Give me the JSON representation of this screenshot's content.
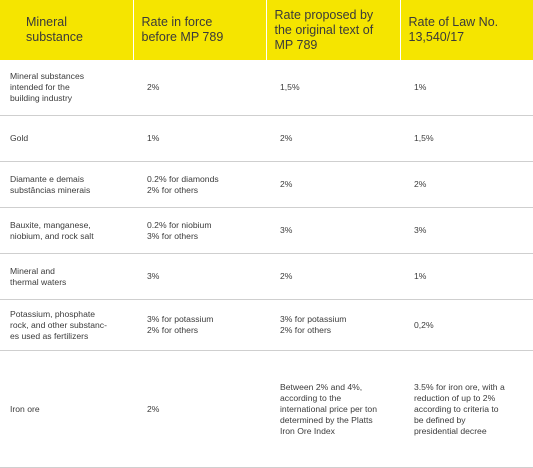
{
  "header": {
    "col1": "Mineral\nsubstance",
    "col2": "Rate in force\nbefore MP 789",
    "col3": "Rate proposed by\nthe original text of\nMP 789",
    "col4": "Rate of Law No.\n13,540/17"
  },
  "rows": [
    {
      "substance": "Mineral substances\nintended for the\nbuilding industry",
      "before": "2%",
      "proposed": "1,5%",
      "law": "1%"
    },
    {
      "substance": "Gold",
      "before": "1%",
      "proposed": "2%",
      "law": "1,5%"
    },
    {
      "substance": "Diamante e demais\nsubstâncias minerais",
      "before": "0.2% for diamonds\n2% for others",
      "proposed": "2%",
      "law": "2%"
    },
    {
      "substance": "Bauxite, manganese,\nniobium, and rock salt",
      "before": "0.2% for niobium\n3% for others",
      "proposed": "3%",
      "law": "3%"
    },
    {
      "substance": "Mineral and\nthermal waters",
      "before": "3%",
      "proposed": "2%",
      "law": "1%"
    },
    {
      "substance": "Potassium, phosphate\nrock, and other substanc-\nes used as fertilizers",
      "before": "3% for potassium\n2% for others",
      "proposed": "3% for potassium\n2% for others",
      "law": "0,2%"
    },
    {
      "substance": "Iron ore",
      "before": "2%",
      "proposed": "Between 2% and 4%,\naccording to the\ninternational price per ton\ndetermined by the Platts\nIron Ore Index",
      "law": "3.5% for iron ore, with a\nreduction of up to 2%\naccording to criteria to\nbe defined by\npresidential decree"
    }
  ],
  "colors": {
    "header_bg": "#f5e500",
    "text": "#3a3a3a",
    "row_rule": "#cfcfcf"
  }
}
